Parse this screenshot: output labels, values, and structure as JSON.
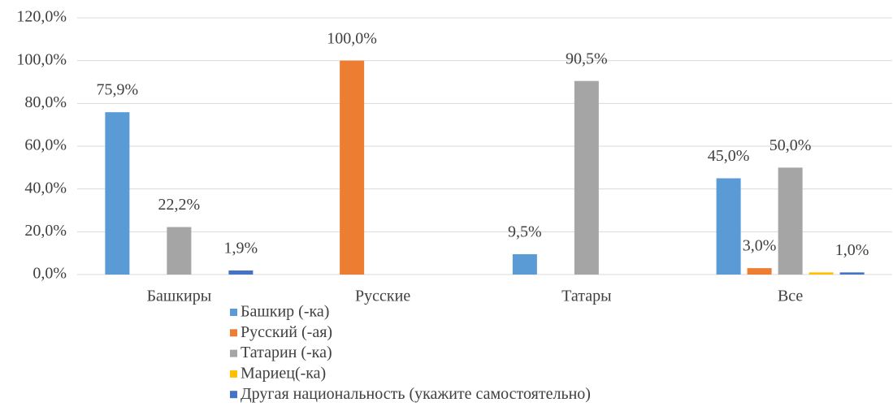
{
  "chart_data": {
    "type": "bar",
    "categories": [
      "Башкиры",
      "Русские",
      "Татары",
      "Все"
    ],
    "series": [
      {
        "name": "Башкир (-ка)",
        "color": "#5b9bd5",
        "values": [
          75.9,
          0,
          9.5,
          45.0
        ],
        "value_labels": [
          "75,9%",
          null,
          "9,5%",
          "45,0%"
        ]
      },
      {
        "name": "Русский (-ая)",
        "color": "#ed7d31",
        "values": [
          0,
          100.0,
          0,
          3.0
        ],
        "value_labels": [
          null,
          "100,0%",
          null,
          "3,0%"
        ]
      },
      {
        "name": "Татарин (-ка)",
        "color": "#a5a5a5",
        "values": [
          22.2,
          0,
          90.5,
          50.0
        ],
        "value_labels": [
          "22,2%",
          null,
          "90,5%",
          "50,0%"
        ]
      },
      {
        "name": "Мариец(-ка)",
        "color": "#ffc000",
        "values": [
          0,
          0,
          0,
          1.0
        ],
        "value_labels": [
          null,
          null,
          null,
          null
        ]
      },
      {
        "name": "Другая национальность (укажите самостоятельно)",
        "color": "#4472c4",
        "values": [
          1.9,
          0,
          0,
          1.0
        ],
        "value_labels": [
          "1,9%",
          null,
          null,
          "1,0%"
        ]
      }
    ],
    "ylim": [
      0,
      120
    ],
    "yticks": [
      {
        "value": 0,
        "label": "0,0%"
      },
      {
        "value": 20,
        "label": "20,0%"
      },
      {
        "value": 40,
        "label": "40,0%"
      },
      {
        "value": 60,
        "label": "60,0%"
      },
      {
        "value": 80,
        "label": "80,0%"
      },
      {
        "value": 100,
        "label": "100,0%"
      },
      {
        "value": 120,
        "label": "120,0%"
      }
    ],
    "grid": true,
    "legend": "bottom"
  }
}
